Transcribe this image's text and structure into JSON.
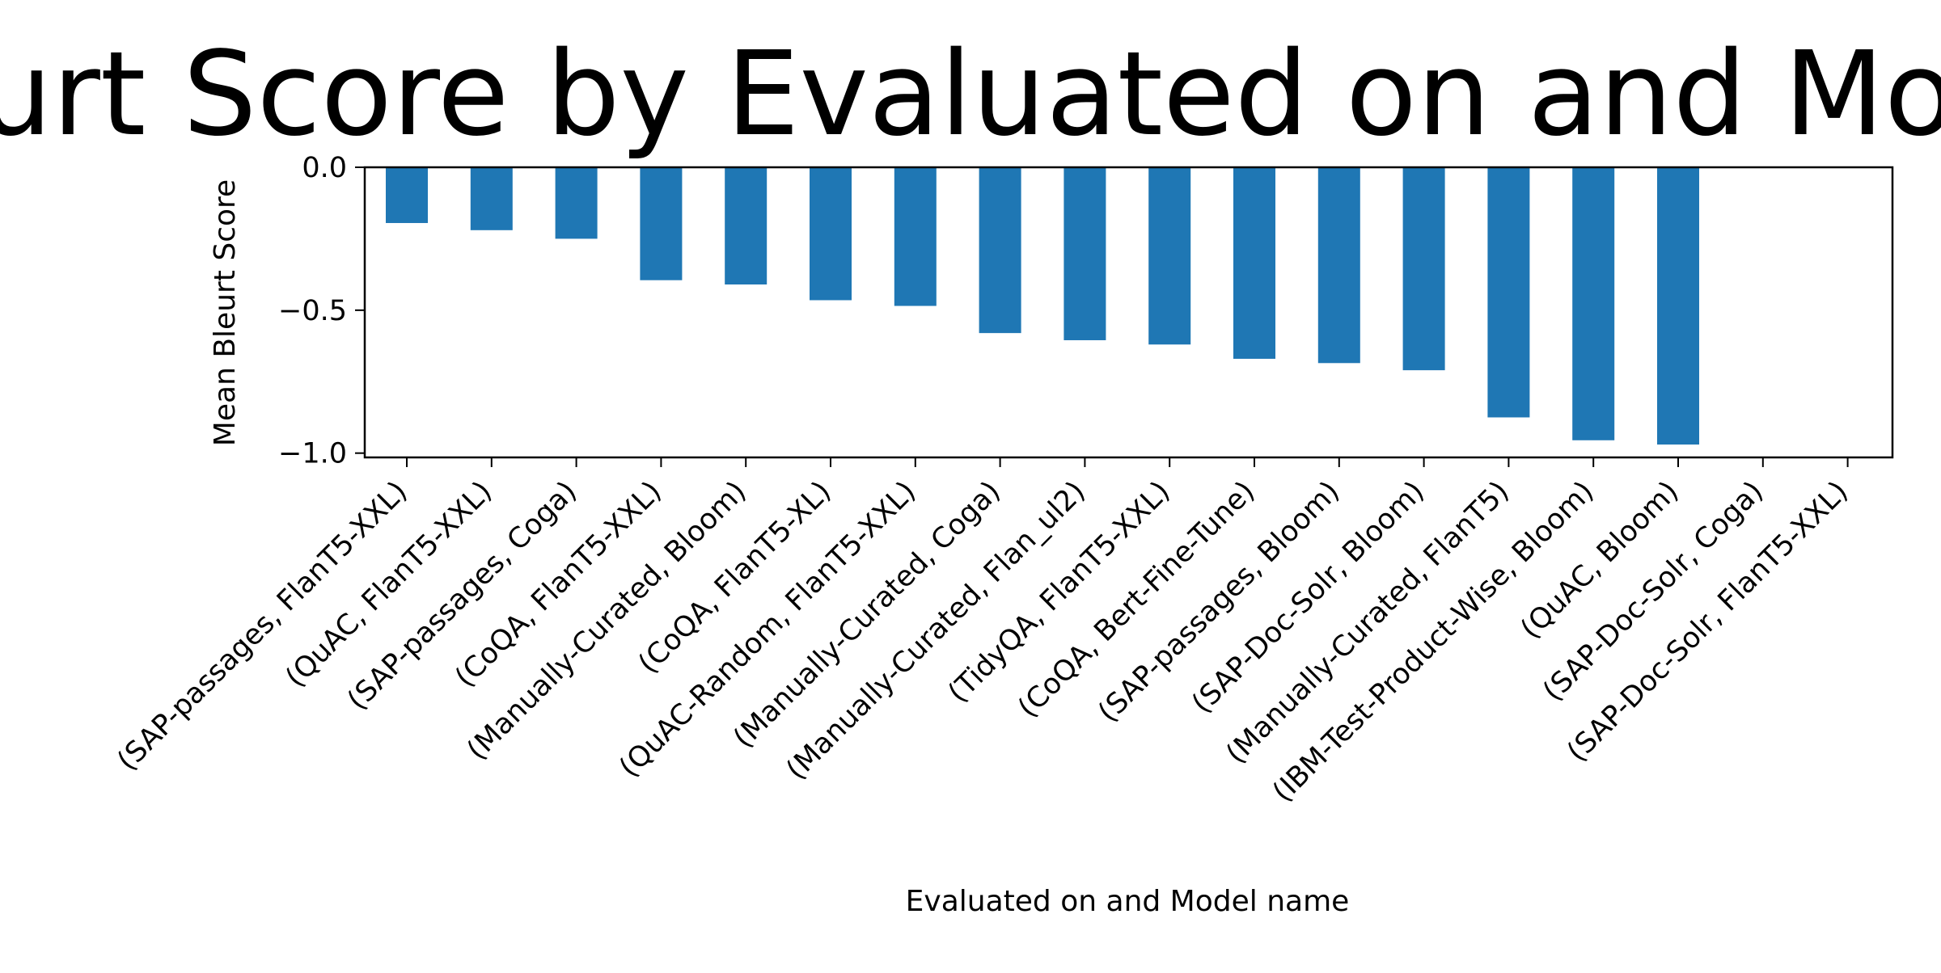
{
  "chart_data": {
    "type": "bar",
    "title": "Mean Bleurt Score by Evaluated on and Model name",
    "xlabel": "Evaluated on and Model name",
    "ylabel": "Mean Bleurt Score",
    "ylim": [
      -1.015,
      0.0
    ],
    "yticks": [
      0.0,
      -0.5,
      -1.0
    ],
    "ytick_labels": [
      "0.0",
      "−0.5",
      "−1.0"
    ],
    "grid": false,
    "legend": "none",
    "bar_color": "#1f77b4",
    "categories": [
      "(SAP-passages, FlanT5-XXL)",
      "(QuAC, FlanT5-XXL)",
      "(SAP-passages, Coga)",
      "(CoQA, FlanT5-XXL)",
      "(Manually-Curated, Bloom)",
      "(CoQA, FlanT5-XL)",
      "(QuAC-Random, FlanT5-XXL)",
      "(Manually-Curated, Coga)",
      "(Manually-Curated, Flan_ul2)",
      "(TidyQA, FlanT5-XXL)",
      "(CoQA, Bert-Fine-Tune)",
      "(SAP-passages, Bloom)",
      "(SAP-Doc-Solr, Bloom)",
      "(Manually-Curated, FlanT5)",
      "(IBM-Test-Product-Wise, Bloom)",
      "(QuAC, Bloom)",
      "(SAP-Doc-Solr, Coga)",
      "(SAP-Doc-Solr, FlanT5-XXL)"
    ],
    "values": [
      -0.195,
      -0.22,
      -0.25,
      -0.395,
      -0.41,
      -0.465,
      -0.485,
      -0.58,
      -0.605,
      -0.62,
      -0.67,
      -0.685,
      -0.71,
      -0.875,
      -0.955,
      -0.97,
      null,
      null
    ]
  }
}
